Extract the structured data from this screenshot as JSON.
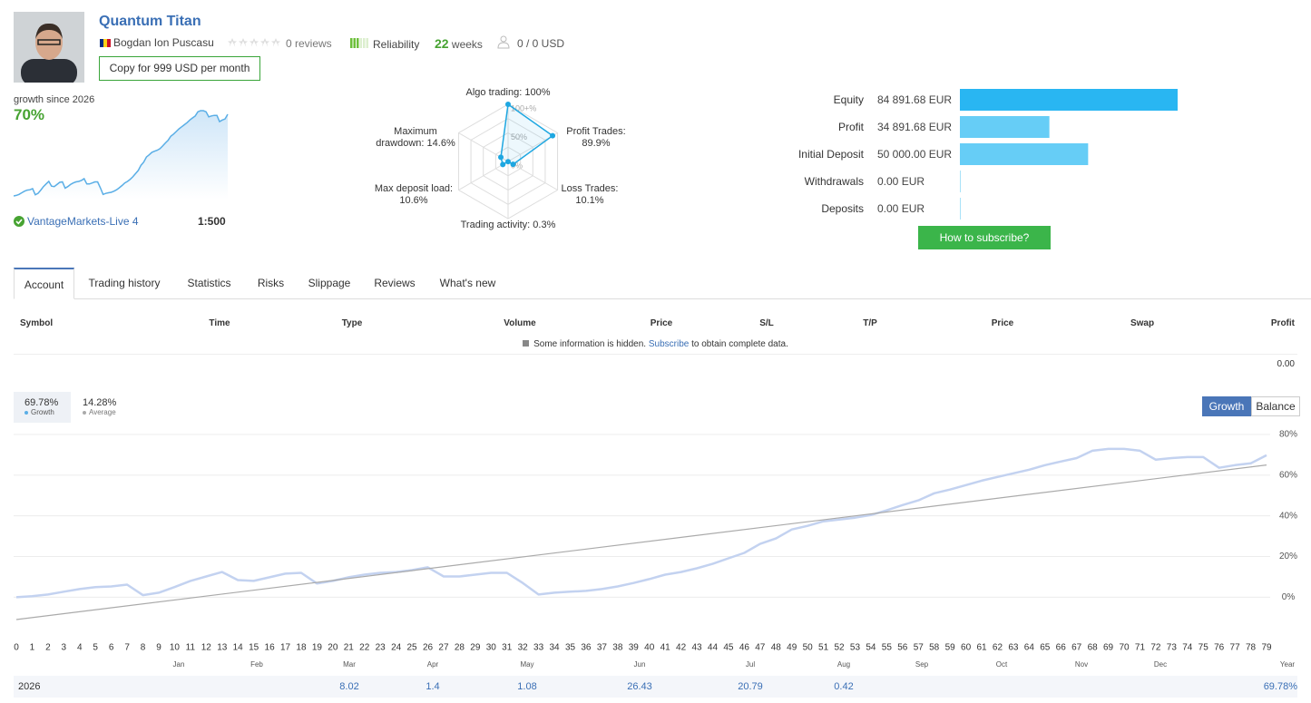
{
  "header": {
    "title": "Quantum Titan",
    "author": "Bogdan Ion Puscasu",
    "reviews": "0 reviews",
    "reliability": "Reliability",
    "weeks_count": "22",
    "weeks_unit": "weeks",
    "subscribers": "0 / 0 USD",
    "copy_button": "Copy for 999 USD per month",
    "growth_caption": "growth since 2026",
    "growth": "70%",
    "broker": "VantageMarkets-Live 4",
    "leverage": "1:500"
  },
  "subscribe_button": "How to subscribe?",
  "tabs": [
    "Account",
    "Trading history",
    "Statistics",
    "Risks",
    "Slippage",
    "Reviews",
    "What's new"
  ],
  "active_tab": 0,
  "table": {
    "columns": [
      "Symbol",
      "Time",
      "Type",
      "Volume",
      "Price",
      "S/L",
      "T/P",
      "Price",
      "Swap",
      "Profit"
    ],
    "notice": {
      "text": "Some information is hidden.",
      "link": "Subscribe",
      "rest": "to obtain complete data."
    },
    "total": "0.00"
  },
  "chart_data": [
    {
      "type": "line",
      "legend": [
        {
          "value": "69.78%",
          "name": "Growth"
        },
        {
          "value": "14.28%",
          "name": "Average"
        }
      ],
      "buttons": [
        "Growth",
        "Balance"
      ],
      "x": [
        0,
        1,
        2,
        3,
        4,
        5,
        6,
        7,
        8,
        9,
        10,
        11,
        12,
        13,
        14,
        15,
        16,
        17,
        18,
        19,
        20,
        21,
        22,
        23,
        24,
        25,
        26,
        27,
        28,
        29,
        30,
        31,
        32,
        33,
        34,
        35,
        36,
        37,
        38,
        39,
        40,
        41,
        42,
        43,
        44,
        45,
        46,
        47,
        48,
        49,
        50,
        51,
        52,
        53,
        54,
        55,
        56,
        57,
        58,
        59,
        60,
        61,
        62,
        63,
        64,
        65,
        66,
        67,
        68,
        69,
        70,
        71,
        72,
        73,
        74,
        75,
        76,
        77,
        78,
        79
      ],
      "series": [
        {
          "color": "#c3d2f0",
          "values": [
            0,
            0.5,
            1.3,
            2.7,
            4,
            5,
            5.3,
            6.2,
            1,
            2.2,
            5,
            8,
            10.2,
            12.4,
            8.4,
            8,
            9.8,
            11.6,
            12,
            6.7,
            8,
            9.8,
            11.1,
            12,
            12.4,
            13.3,
            14.7,
            10.2,
            10.2,
            11.1,
            12,
            12,
            7,
            1.3,
            2.2,
            2.7,
            3.1,
            4,
            5.3,
            7,
            8.9,
            11.1,
            12.4,
            14.2,
            16.4,
            19.1,
            21.8,
            26.2,
            28.9,
            33.3,
            35.1,
            37.3,
            38.2,
            39.1,
            40.4,
            42.7,
            45.3,
            47.6,
            51.1,
            52.9,
            55.1,
            57.3,
            59.1,
            60.9,
            62.7,
            64.9,
            66.7,
            68.4,
            72,
            72.9,
            72.9,
            72,
            67.6,
            68.4,
            68.9,
            68.9,
            63.6,
            64.9,
            65.8,
            69.78
          ]
        },
        {
          "color": "#aaaaaa",
          "x": [
            0,
            79
          ],
          "values": [
            -11,
            65
          ]
        }
      ],
      "xlim": [
        0,
        79
      ],
      "ylim": [
        -15,
        84
      ],
      "yticks": [
        {
          "value": 0,
          "label": "0%"
        },
        {
          "value": 20,
          "label": "20%"
        },
        {
          "value": 40,
          "label": "40%"
        },
        {
          "value": 60,
          "label": "60%"
        },
        {
          "value": 80,
          "label": "80%"
        }
      ],
      "grid": true,
      "months": [
        "Jan",
        "Feb",
        "Mar",
        "Apr",
        "May",
        "Jun",
        "Jul",
        "Aug",
        "Sep",
        "Oct",
        "Nov",
        "Dec"
      ],
      "year_label": "Year",
      "year_row": {
        "year": "2026",
        "months": [
          null,
          null,
          "8.02",
          "1.4",
          "1.08",
          "26.43",
          "20.79",
          "0.42",
          null,
          null,
          null,
          null
        ],
        "total": "69.78%"
      }
    },
    {
      "type": "radar",
      "categories": [
        "Algo trading:",
        "Profit Trades:",
        "Loss Trades:",
        "Trading activity:",
        "Max deposit load:",
        "Maximum drawdown:"
      ],
      "values": [
        100,
        89.9,
        10.1,
        0.3,
        10.6,
        14.6
      ],
      "value_labels": [
        "100%",
        "89.9%",
        "10.1%",
        "0.3%",
        "10.6%",
        "14.6%"
      ],
      "rlim": [
        0,
        100
      ],
      "rticks": [
        {
          "value": 0,
          "label": "0%"
        },
        {
          "value": 25,
          "label": null
        },
        {
          "value": 50,
          "label": "50%"
        },
        {
          "value": 75,
          "label": null
        },
        {
          "value": 100,
          "label": "100+%"
        }
      ],
      "color": "#1ea7e1"
    },
    {
      "type": "hbar",
      "categories": [
        "Equity",
        "Profit",
        "Initial Deposit",
        "Withdrawals",
        "Deposits"
      ],
      "values": [
        84891.68,
        34891.68,
        50000,
        0,
        0
      ],
      "value_labels": [
        "84 891.68 EUR",
        "34 891.68 EUR",
        "50 000.00 EUR",
        "0.00 EUR",
        "0.00 EUR"
      ],
      "colors": [
        "#29b6f2",
        "#66cdf6",
        "#66cdf6",
        "#a9e2f8",
        "#a9e2f8"
      ]
    }
  ]
}
